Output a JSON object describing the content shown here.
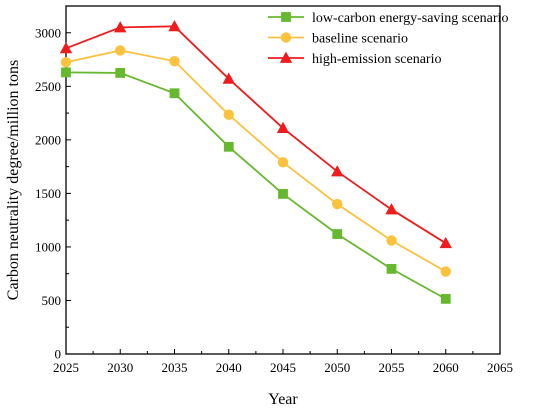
{
  "chart_data": {
    "type": "line",
    "title": "",
    "xlabel": "Year",
    "ylabel": "Carbon neutrality degree/million tons",
    "x": [
      2025,
      2030,
      2035,
      2040,
      2045,
      2050,
      2055,
      2060
    ],
    "xlim": [
      2025,
      2065
    ],
    "ylim": [
      0,
      3250
    ],
    "x_ticks": [
      "2025",
      "2030",
      "2035",
      "2040",
      "2045",
      "2050",
      "2055",
      "2060",
      "2065"
    ],
    "y_ticks": [
      "0",
      "500",
      "1000",
      "1500",
      "2000",
      "2500",
      "3000"
    ],
    "grid": false,
    "legend_position": "top-right",
    "series": [
      {
        "name": "low-carbon energy-saving scenario",
        "color": "#66b82e",
        "marker": "square",
        "values": [
          2630,
          2625,
          2435,
          1935,
          1495,
          1120,
          795,
          515
        ]
      },
      {
        "name": "baseline scenario",
        "color": "#fbc23e",
        "marker": "circle",
        "values": [
          2725,
          2835,
          2735,
          2235,
          1790,
          1400,
          1060,
          770
        ]
      },
      {
        "name": "high-emission scenario",
        "color": "#ee1c1c",
        "marker": "triangle",
        "values": [
          2855,
          3050,
          3060,
          2570,
          2110,
          1705,
          1350,
          1035
        ]
      }
    ]
  }
}
